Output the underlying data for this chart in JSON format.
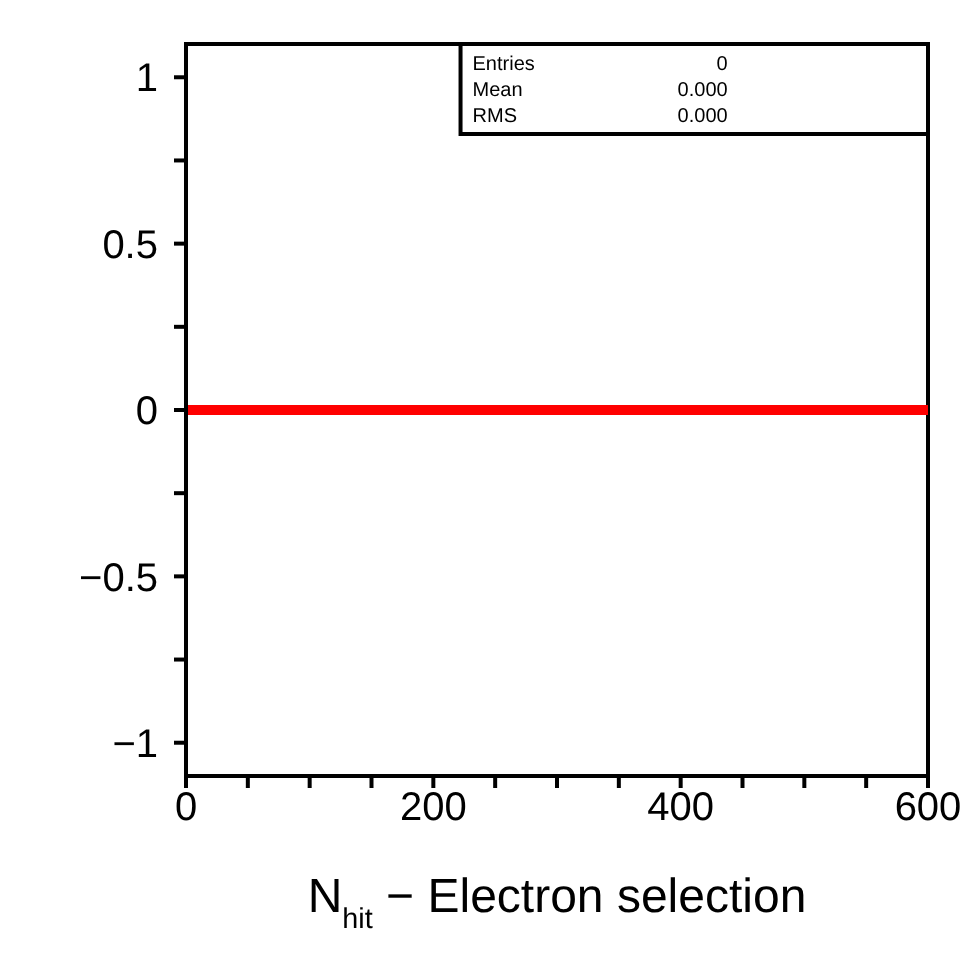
{
  "chart_data": {
    "type": "line",
    "xlabel": "N$_{hit}$ − Electron selection",
    "x": [
      0,
      600
    ],
    "values": [
      0,
      0
    ],
    "color": "#ff0000",
    "xlim": [
      0,
      600
    ],
    "xticks": [
      0,
      {
        "value": 50,
        "label": null
      },
      {
        "value": 100,
        "label": null
      },
      {
        "value": 150,
        "label": null
      },
      200,
      {
        "value": 250,
        "label": null
      },
      {
        "value": 300,
        "label": null
      },
      {
        "value": 350,
        "label": null
      },
      400,
      {
        "value": 450,
        "label": null
      },
      {
        "value": 500,
        "label": null
      },
      {
        "value": 550,
        "label": null
      },
      600
    ],
    "ylim": [
      -1.1,
      1.1
    ],
    "yticks": [
      {
        "value": -1,
        "label": "−1"
      },
      {
        "value": -0.75,
        "label": null
      },
      {
        "value": -0.5,
        "label": "−0.5"
      },
      {
        "value": -0.25,
        "label": null
      },
      0,
      {
        "value": 0.25,
        "label": null
      },
      0.5,
      {
        "value": 0.75,
        "label": null
      },
      1
    ],
    "annotations": [
      "Entries 0",
      "Mean 0.000",
      "RMS 0.000"
    ],
    "grid": false,
    "legend": false
  }
}
